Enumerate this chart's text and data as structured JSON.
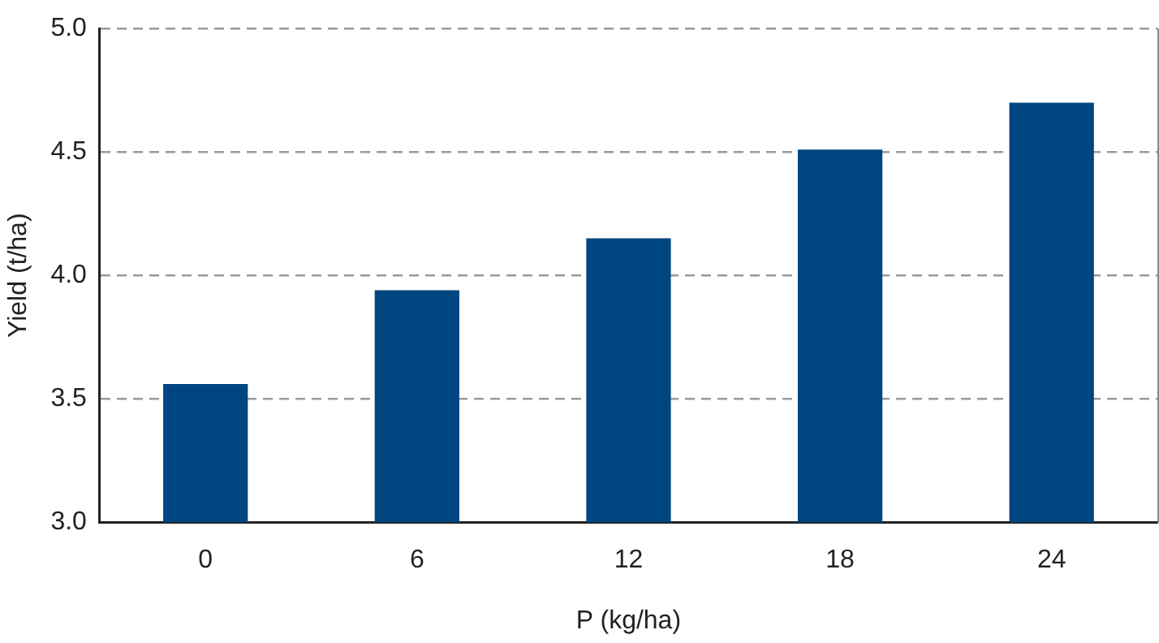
{
  "chart_data": {
    "type": "bar",
    "xlabel": "P (kg/ha)",
    "ylabel": "Yield (t/ha)",
    "categories": [
      "0",
      "6",
      "12",
      "18",
      "24"
    ],
    "series": [
      {
        "color": "#004680",
        "values": [
          3.56,
          3.94,
          4.15,
          4.51,
          4.7
        ]
      }
    ],
    "ylim": [
      3.0,
      5.0
    ],
    "yticks": [
      {
        "value": 3,
        "label": "3.0"
      },
      3.5,
      {
        "value": 4,
        "label": "4.0"
      },
      4.5,
      {
        "value": 5,
        "label": "5.0"
      }
    ],
    "grid": "y",
    "legend": false
  }
}
